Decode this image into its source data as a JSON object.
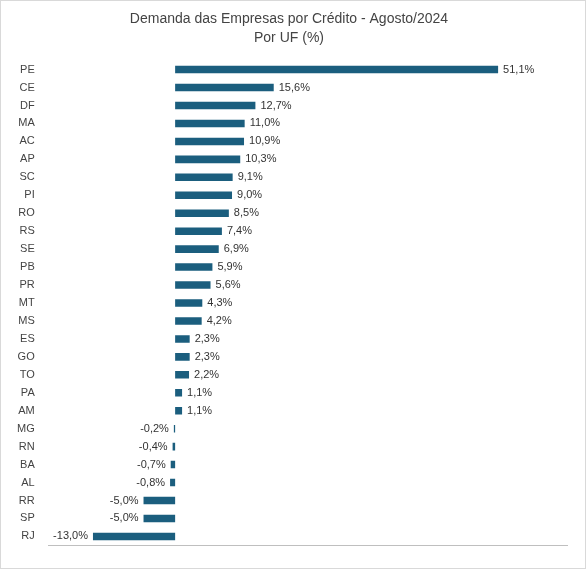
{
  "chart_data": {
    "type": "bar",
    "orientation": "horizontal",
    "title": "Demanda das Empresas por Crédito - Agosto/2024",
    "subtitle": "Por UF (%)",
    "categories": [
      "PE",
      "CE",
      "DF",
      "MA",
      "AC",
      "AP",
      "SC",
      "PI",
      "RO",
      "RS",
      "SE",
      "PB",
      "PR",
      "MT",
      "MS",
      "ES",
      "GO",
      "TO",
      "PA",
      "AM",
      "MG",
      "RN",
      "BA",
      "AL",
      "RR",
      "SP",
      "RJ"
    ],
    "values": [
      51.1,
      15.6,
      12.7,
      11.0,
      10.9,
      10.3,
      9.1,
      9.0,
      8.5,
      7.4,
      6.9,
      5.9,
      5.6,
      4.3,
      4.2,
      2.3,
      2.3,
      2.2,
      1.1,
      1.1,
      -0.2,
      -0.4,
      -0.7,
      -0.8,
      -5.0,
      -5.0,
      -13.0
    ],
    "value_labels": [
      "51,1%",
      "15,6%",
      "12,7%",
      "11,0%",
      "10,9%",
      "10,3%",
      "9,1%",
      "9,0%",
      "8,5%",
      "7,4%",
      "6,9%",
      "5,9%",
      "5,6%",
      "4,3%",
      "4,2%",
      "2,3%",
      "2,3%",
      "2,2%",
      "1,1%",
      "1,1%",
      "-0,2%",
      "-0,4%",
      "-0,7%",
      "-0,8%",
      "-5,0%",
      "-5,0%",
      "-13,0%"
    ],
    "color": "#1b5e7e",
    "xlim": [
      -20,
      62
    ],
    "grid": false,
    "data_labels": true,
    "tick_labels": "y"
  }
}
